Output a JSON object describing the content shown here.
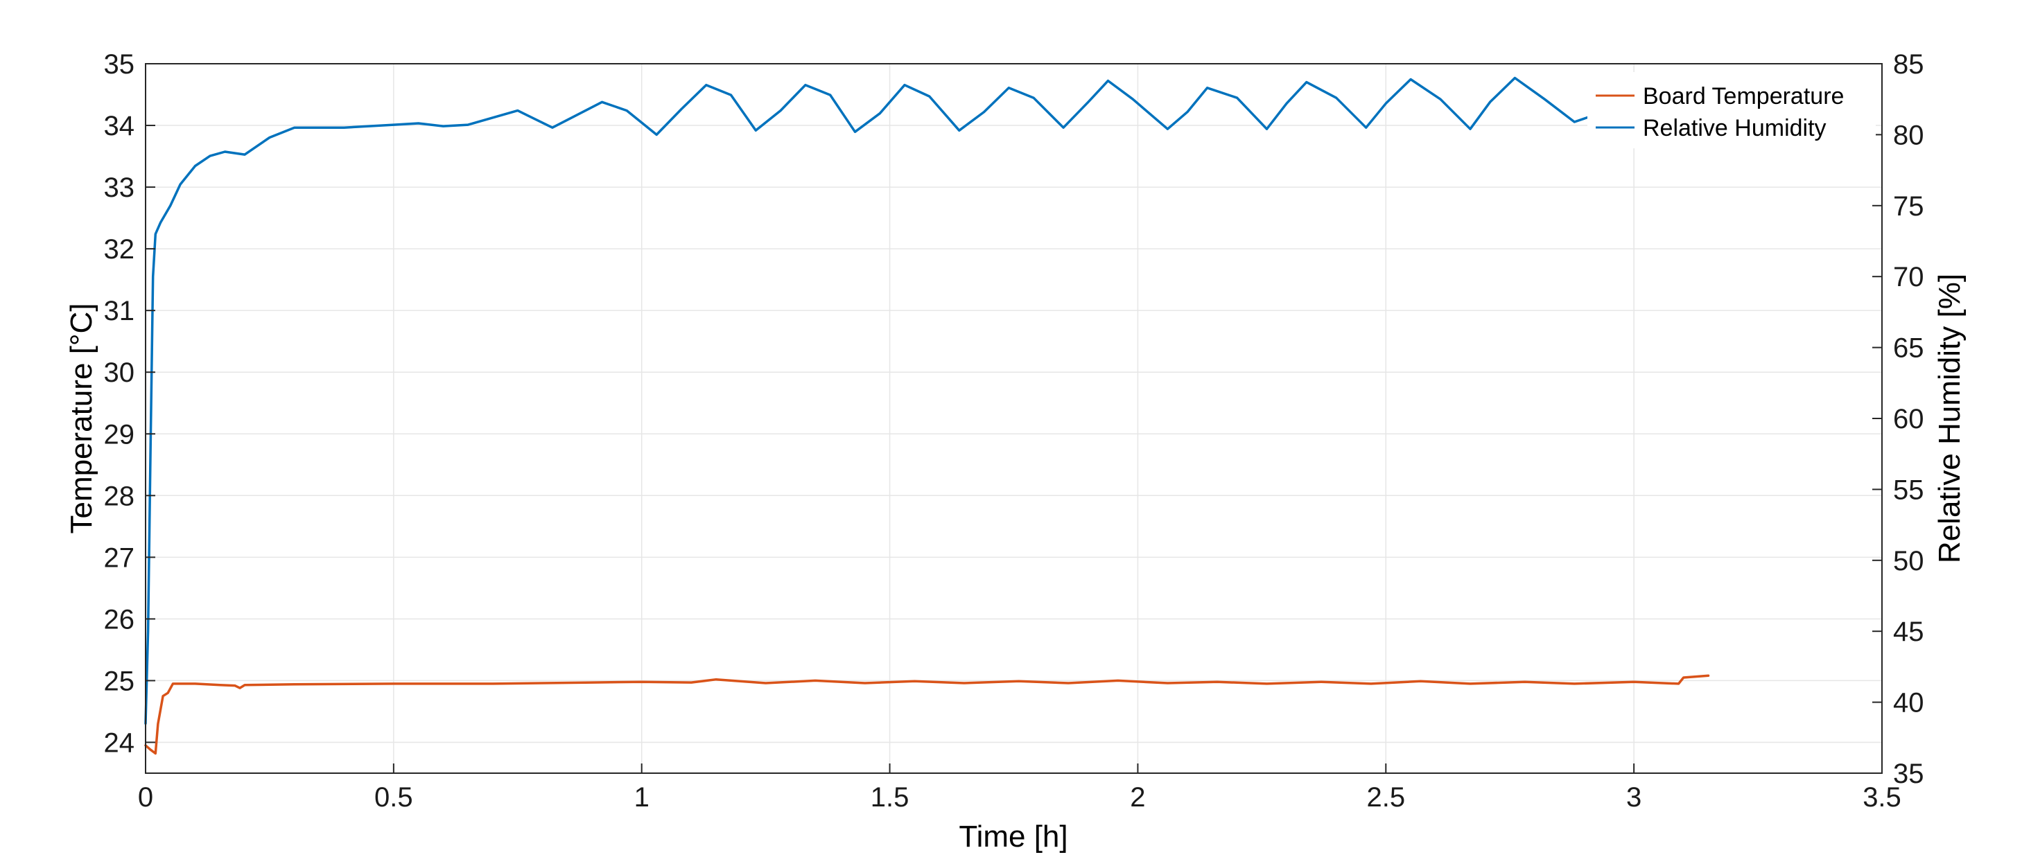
{
  "chart_data": {
    "type": "line",
    "title": "",
    "xlabel": "Time [h]",
    "ylabel_left": "Temperature [°C]",
    "ylabel_right": "Relative Humidity [%]",
    "xlim": [
      0,
      3.5
    ],
    "ylim_left": [
      23.5,
      35
    ],
    "ylim_right": [
      35,
      85
    ],
    "x_ticks": [
      0,
      0.5,
      1,
      1.5,
      2,
      2.5,
      3,
      3.5
    ],
    "x_tick_labels": [
      "0",
      "0.5",
      "1",
      "1.5",
      "2",
      "2.5",
      "3",
      "3.5"
    ],
    "y_left_ticks": [
      24,
      25,
      26,
      27,
      28,
      29,
      30,
      31,
      32,
      33,
      34,
      35
    ],
    "y_left_tick_labels": [
      "24",
      "25",
      "26",
      "27",
      "28",
      "29",
      "30",
      "31",
      "32",
      "33",
      "34",
      "35"
    ],
    "y_right_ticks": [
      35,
      40,
      45,
      50,
      55,
      60,
      65,
      70,
      75,
      80,
      85
    ],
    "y_right_tick_labels": [
      "35",
      "40",
      "45",
      "50",
      "55",
      "60",
      "65",
      "70",
      "75",
      "80",
      "85"
    ],
    "grid": true,
    "legend_position": "top-right",
    "series": [
      {
        "name": "Board Temperature",
        "axis": "left",
        "color": "#D95319",
        "points": [
          [
            0,
            23.95
          ],
          [
            0.01,
            23.88
          ],
          [
            0.02,
            23.82
          ],
          [
            0.025,
            24.3
          ],
          [
            0.035,
            24.75
          ],
          [
            0.045,
            24.8
          ],
          [
            0.055,
            24.95
          ],
          [
            0.1,
            24.95
          ],
          [
            0.15,
            24.93
          ],
          [
            0.18,
            24.92
          ],
          [
            0.19,
            24.88
          ],
          [
            0.2,
            24.93
          ],
          [
            0.3,
            24.94
          ],
          [
            0.5,
            24.95
          ],
          [
            0.7,
            24.95
          ],
          [
            0.9,
            24.97
          ],
          [
            1.0,
            24.98
          ],
          [
            1.1,
            24.97
          ],
          [
            1.15,
            25.02
          ],
          [
            1.25,
            24.96
          ],
          [
            1.35,
            25.0
          ],
          [
            1.45,
            24.96
          ],
          [
            1.55,
            24.99
          ],
          [
            1.65,
            24.96
          ],
          [
            1.76,
            24.99
          ],
          [
            1.86,
            24.96
          ],
          [
            1.96,
            25.0
          ],
          [
            2.06,
            24.96
          ],
          [
            2.16,
            24.98
          ],
          [
            2.26,
            24.95
          ],
          [
            2.37,
            24.98
          ],
          [
            2.47,
            24.95
          ],
          [
            2.57,
            24.99
          ],
          [
            2.67,
            24.95
          ],
          [
            2.78,
            24.98
          ],
          [
            2.88,
            24.95
          ],
          [
            3.0,
            24.98
          ],
          [
            3.09,
            24.95
          ],
          [
            3.1,
            25.05
          ],
          [
            3.15,
            25.08
          ]
        ]
      },
      {
        "name": "Relative Humidity",
        "axis": "right",
        "color": "#0072BD",
        "points": [
          [
            0,
            38.5
          ],
          [
            0.005,
            45.0
          ],
          [
            0.01,
            58.0
          ],
          [
            0.015,
            70.0
          ],
          [
            0.02,
            73.0
          ],
          [
            0.03,
            73.8
          ],
          [
            0.05,
            75.0
          ],
          [
            0.07,
            76.5
          ],
          [
            0.1,
            77.8
          ],
          [
            0.13,
            78.5
          ],
          [
            0.16,
            78.8
          ],
          [
            0.2,
            78.6
          ],
          [
            0.25,
            79.8
          ],
          [
            0.3,
            80.5
          ],
          [
            0.4,
            80.5
          ],
          [
            0.5,
            80.7
          ],
          [
            0.55,
            80.8
          ],
          [
            0.6,
            80.6
          ],
          [
            0.65,
            80.7
          ],
          [
            0.75,
            81.7
          ],
          [
            0.82,
            80.5
          ],
          [
            0.92,
            82.3
          ],
          [
            0.97,
            81.7
          ],
          [
            1.03,
            80.0
          ],
          [
            1.08,
            81.8
          ],
          [
            1.13,
            83.5
          ],
          [
            1.18,
            82.8
          ],
          [
            1.23,
            80.3
          ],
          [
            1.28,
            81.7
          ],
          [
            1.33,
            83.5
          ],
          [
            1.38,
            82.8
          ],
          [
            1.43,
            80.2
          ],
          [
            1.48,
            81.5
          ],
          [
            1.53,
            83.5
          ],
          [
            1.58,
            82.7
          ],
          [
            1.64,
            80.3
          ],
          [
            1.69,
            81.6
          ],
          [
            1.74,
            83.3
          ],
          [
            1.79,
            82.6
          ],
          [
            1.85,
            80.5
          ],
          [
            1.9,
            82.3
          ],
          [
            1.94,
            83.8
          ],
          [
            1.99,
            82.5
          ],
          [
            2.06,
            80.4
          ],
          [
            2.1,
            81.6
          ],
          [
            2.14,
            83.3
          ],
          [
            2.2,
            82.6
          ],
          [
            2.26,
            80.4
          ],
          [
            2.3,
            82.2
          ],
          [
            2.34,
            83.7
          ],
          [
            2.4,
            82.6
          ],
          [
            2.46,
            80.5
          ],
          [
            2.5,
            82.2
          ],
          [
            2.55,
            83.9
          ],
          [
            2.61,
            82.5
          ],
          [
            2.67,
            80.4
          ],
          [
            2.71,
            82.3
          ],
          [
            2.76,
            84.0
          ],
          [
            2.82,
            82.5
          ],
          [
            2.88,
            80.9
          ],
          [
            2.93,
            81.5
          ],
          [
            3.0,
            81.4
          ],
          [
            3.05,
            82.0
          ],
          [
            3.1,
            81.2
          ],
          [
            3.15,
            79.5
          ]
        ]
      }
    ]
  }
}
